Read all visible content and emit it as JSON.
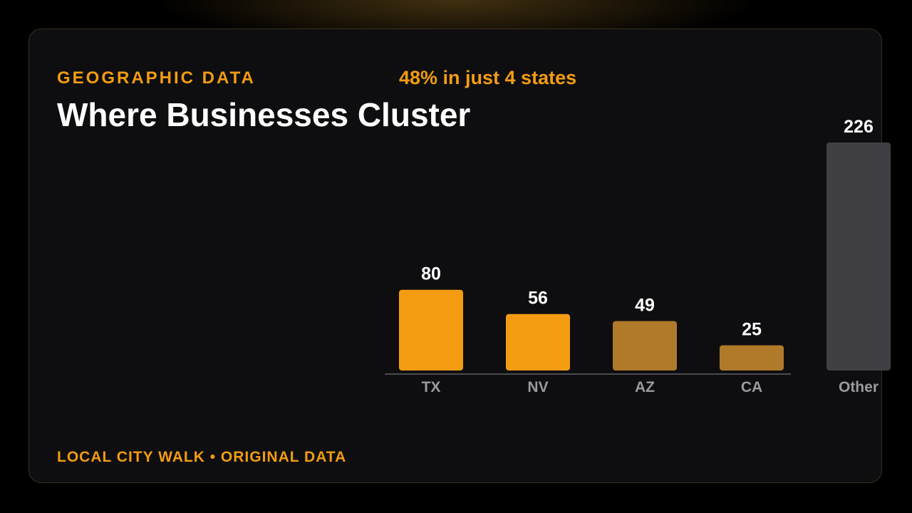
{
  "header": {
    "eyebrow": "GEOGRAPHIC DATA",
    "headline": "48% in just 4 states",
    "title": "Where Businesses Cluster"
  },
  "footer": {
    "text": "LOCAL CITY WALK • ORIGINAL DATA"
  },
  "colors": {
    "accent": "#f39c12",
    "accent_muted": "#b07a2a",
    "other": "#3f3f44",
    "background": "#0e0e10"
  },
  "chart_data": {
    "type": "bar",
    "title": "Where Businesses Cluster",
    "subtitle": "48% in just 4 states",
    "xlabel": "",
    "ylabel": "",
    "ylim": [
      0,
      226
    ],
    "grid": false,
    "categories": [
      "TX",
      "NV",
      "AZ",
      "CA",
      "Other"
    ],
    "values": [
      80,
      56,
      49,
      25,
      226
    ],
    "value_labels": [
      "80",
      "56",
      "49",
      "25",
      "226"
    ],
    "bar_colors": [
      "#f39c12",
      "#f39c12",
      "#b07a2a",
      "#b07a2a",
      "#3f3f44"
    ]
  }
}
